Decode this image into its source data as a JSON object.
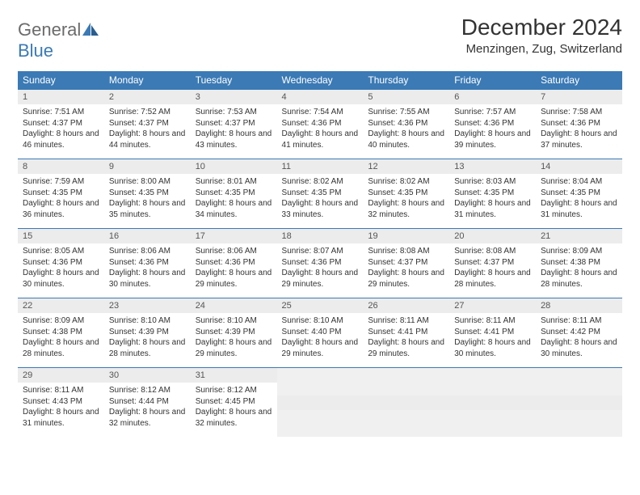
{
  "brand": {
    "part1": "General",
    "part2": "Blue"
  },
  "title": "December 2024",
  "location": "Menzingen, Zug, Switzerland",
  "colors": {
    "header_bg": "#3b7ab5",
    "header_fg": "#ffffff",
    "daynum_bg": "#ececec",
    "border": "#3b7ab5",
    "logo_gray": "#6b6b6b",
    "logo_blue": "#3b7ab5"
  },
  "typography": {
    "title_fontsize": 28,
    "location_fontsize": 15,
    "header_fontsize": 12,
    "daynum_fontsize": 11,
    "content_fontsize": 10
  },
  "weekdays": [
    "Sunday",
    "Monday",
    "Tuesday",
    "Wednesday",
    "Thursday",
    "Friday",
    "Saturday"
  ],
  "weeks": [
    [
      {
        "n": "1",
        "sr": "Sunrise: 7:51 AM",
        "ss": "Sunset: 4:37 PM",
        "dl": "Daylight: 8 hours and 46 minutes."
      },
      {
        "n": "2",
        "sr": "Sunrise: 7:52 AM",
        "ss": "Sunset: 4:37 PM",
        "dl": "Daylight: 8 hours and 44 minutes."
      },
      {
        "n": "3",
        "sr": "Sunrise: 7:53 AM",
        "ss": "Sunset: 4:37 PM",
        "dl": "Daylight: 8 hours and 43 minutes."
      },
      {
        "n": "4",
        "sr": "Sunrise: 7:54 AM",
        "ss": "Sunset: 4:36 PM",
        "dl": "Daylight: 8 hours and 41 minutes."
      },
      {
        "n": "5",
        "sr": "Sunrise: 7:55 AM",
        "ss": "Sunset: 4:36 PM",
        "dl": "Daylight: 8 hours and 40 minutes."
      },
      {
        "n": "6",
        "sr": "Sunrise: 7:57 AM",
        "ss": "Sunset: 4:36 PM",
        "dl": "Daylight: 8 hours and 39 minutes."
      },
      {
        "n": "7",
        "sr": "Sunrise: 7:58 AM",
        "ss": "Sunset: 4:36 PM",
        "dl": "Daylight: 8 hours and 37 minutes."
      }
    ],
    [
      {
        "n": "8",
        "sr": "Sunrise: 7:59 AM",
        "ss": "Sunset: 4:35 PM",
        "dl": "Daylight: 8 hours and 36 minutes."
      },
      {
        "n": "9",
        "sr": "Sunrise: 8:00 AM",
        "ss": "Sunset: 4:35 PM",
        "dl": "Daylight: 8 hours and 35 minutes."
      },
      {
        "n": "10",
        "sr": "Sunrise: 8:01 AM",
        "ss": "Sunset: 4:35 PM",
        "dl": "Daylight: 8 hours and 34 minutes."
      },
      {
        "n": "11",
        "sr": "Sunrise: 8:02 AM",
        "ss": "Sunset: 4:35 PM",
        "dl": "Daylight: 8 hours and 33 minutes."
      },
      {
        "n": "12",
        "sr": "Sunrise: 8:02 AM",
        "ss": "Sunset: 4:35 PM",
        "dl": "Daylight: 8 hours and 32 minutes."
      },
      {
        "n": "13",
        "sr": "Sunrise: 8:03 AM",
        "ss": "Sunset: 4:35 PM",
        "dl": "Daylight: 8 hours and 31 minutes."
      },
      {
        "n": "14",
        "sr": "Sunrise: 8:04 AM",
        "ss": "Sunset: 4:35 PM",
        "dl": "Daylight: 8 hours and 31 minutes."
      }
    ],
    [
      {
        "n": "15",
        "sr": "Sunrise: 8:05 AM",
        "ss": "Sunset: 4:36 PM",
        "dl": "Daylight: 8 hours and 30 minutes."
      },
      {
        "n": "16",
        "sr": "Sunrise: 8:06 AM",
        "ss": "Sunset: 4:36 PM",
        "dl": "Daylight: 8 hours and 30 minutes."
      },
      {
        "n": "17",
        "sr": "Sunrise: 8:06 AM",
        "ss": "Sunset: 4:36 PM",
        "dl": "Daylight: 8 hours and 29 minutes."
      },
      {
        "n": "18",
        "sr": "Sunrise: 8:07 AM",
        "ss": "Sunset: 4:36 PM",
        "dl": "Daylight: 8 hours and 29 minutes."
      },
      {
        "n": "19",
        "sr": "Sunrise: 8:08 AM",
        "ss": "Sunset: 4:37 PM",
        "dl": "Daylight: 8 hours and 29 minutes."
      },
      {
        "n": "20",
        "sr": "Sunrise: 8:08 AM",
        "ss": "Sunset: 4:37 PM",
        "dl": "Daylight: 8 hours and 28 minutes."
      },
      {
        "n": "21",
        "sr": "Sunrise: 8:09 AM",
        "ss": "Sunset: 4:38 PM",
        "dl": "Daylight: 8 hours and 28 minutes."
      }
    ],
    [
      {
        "n": "22",
        "sr": "Sunrise: 8:09 AM",
        "ss": "Sunset: 4:38 PM",
        "dl": "Daylight: 8 hours and 28 minutes."
      },
      {
        "n": "23",
        "sr": "Sunrise: 8:10 AM",
        "ss": "Sunset: 4:39 PM",
        "dl": "Daylight: 8 hours and 28 minutes."
      },
      {
        "n": "24",
        "sr": "Sunrise: 8:10 AM",
        "ss": "Sunset: 4:39 PM",
        "dl": "Daylight: 8 hours and 29 minutes."
      },
      {
        "n": "25",
        "sr": "Sunrise: 8:10 AM",
        "ss": "Sunset: 4:40 PM",
        "dl": "Daylight: 8 hours and 29 minutes."
      },
      {
        "n": "26",
        "sr": "Sunrise: 8:11 AM",
        "ss": "Sunset: 4:41 PM",
        "dl": "Daylight: 8 hours and 29 minutes."
      },
      {
        "n": "27",
        "sr": "Sunrise: 8:11 AM",
        "ss": "Sunset: 4:41 PM",
        "dl": "Daylight: 8 hours and 30 minutes."
      },
      {
        "n": "28",
        "sr": "Sunrise: 8:11 AM",
        "ss": "Sunset: 4:42 PM",
        "dl": "Daylight: 8 hours and 30 minutes."
      }
    ],
    [
      {
        "n": "29",
        "sr": "Sunrise: 8:11 AM",
        "ss": "Sunset: 4:43 PM",
        "dl": "Daylight: 8 hours and 31 minutes."
      },
      {
        "n": "30",
        "sr": "Sunrise: 8:12 AM",
        "ss": "Sunset: 4:44 PM",
        "dl": "Daylight: 8 hours and 32 minutes."
      },
      {
        "n": "31",
        "sr": "Sunrise: 8:12 AM",
        "ss": "Sunset: 4:45 PM",
        "dl": "Daylight: 8 hours and 32 minutes."
      },
      null,
      null,
      null,
      null
    ]
  ]
}
